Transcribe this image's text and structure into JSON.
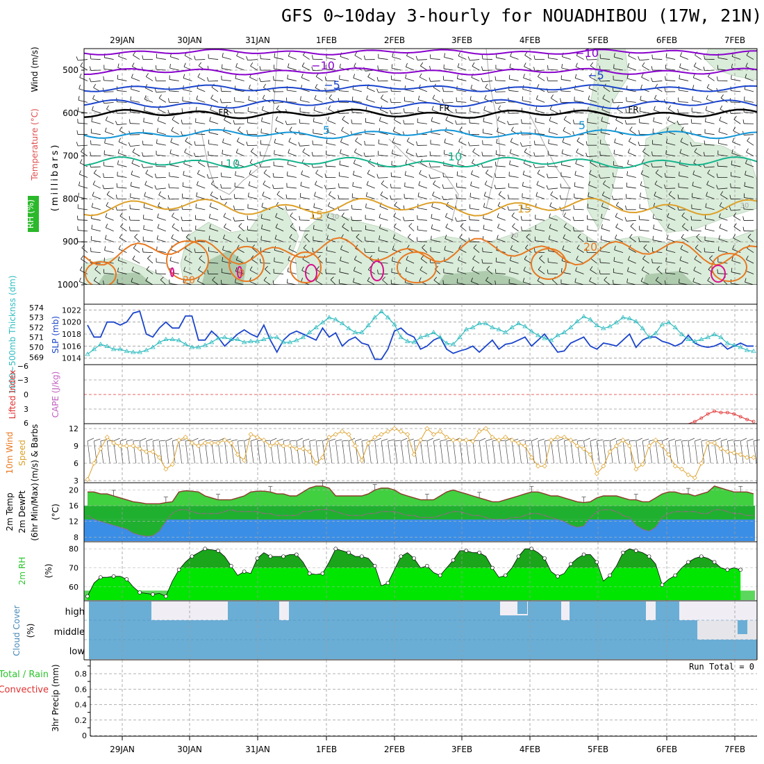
{
  "title": "GFS 0~10day 3-hourly for NOUADHIBOU (17W, 21N)",
  "date_labels": [
    "29JAN",
    "30JAN",
    "31JAN",
    "1FEB",
    "2FEB",
    "3FEB",
    "4FEB",
    "5FEB",
    "6FEB",
    "7FEB"
  ],
  "colors": {
    "purple": "#8800cc",
    "blue": "#1a44cc",
    "black": "#000000",
    "lightblue": "#1196d8",
    "teal": "#14b48c",
    "gold": "#dca028",
    "orange": "#e87820",
    "magenta": "#d8108c",
    "lcyan": "#30bcc0",
    "rhgreen": "#2bc42b",
    "brightgreen": "#00e600",
    "darkgreen": "#1aa51a",
    "cloud": "#6aaed6",
    "red": "#e03030"
  },
  "chart_data": [
    {
      "panel": "upper-air",
      "type": "line",
      "ylabel_parts": {
        "wind": "Wind (m/s)",
        "temp": "Temperature (°C)",
        "rh": "RH (%)",
        "unit": "(millibars)"
      },
      "yticks": [
        "500",
        "600",
        "700",
        "800",
        "900",
        "1000"
      ],
      "contour_labels": [
        "−10",
        "−10",
        "−5",
        "−5",
        "5",
        "5",
        "5",
        "10",
        "10",
        "10",
        "15",
        "15",
        "20",
        "20",
        "FR",
        "FR",
        "FR",
        "30",
        "30",
        "30",
        "0"
      ]
    },
    {
      "panel": "thickness-slp",
      "type": "line",
      "ylabel_left": "1000~500mb Thicknss (dm)",
      "ylabel_right": "SLP (mb)",
      "left_ticks": [
        "574",
        "573",
        "572",
        "571",
        "570",
        "569"
      ],
      "right_ticks": [
        "1022",
        "1020",
        "1018",
        "1016",
        "1014"
      ],
      "series": [
        {
          "name": "SLP (mb)",
          "values": [
            1019.5,
            1017.5,
            1017.5,
            1020,
            1020,
            1019.5,
            1020,
            1021.5,
            1021.8,
            1018,
            1017.5,
            1019,
            1020,
            1019,
            1019,
            1021,
            1021,
            1017,
            1017,
            1018.5,
            1017.5,
            1016,
            1017,
            1018,
            1018.7,
            1018,
            1017.5,
            1019.5,
            1017,
            1015,
            1017,
            1018,
            1018.5,
            1018,
            1017.5,
            1017,
            1019,
            1017.5,
            1018.2,
            1016,
            1017,
            1017.5,
            1016.5,
            1016.2,
            1013.8,
            1013.8,
            1015.5,
            1018.5,
            1019,
            1018,
            1017.5,
            1015.5,
            1016,
            1017,
            1017.5,
            1015.5,
            1014.8,
            1015.2,
            1015.5,
            1016,
            1015,
            1016,
            1017,
            1015.5,
            1016.3,
            1016.5,
            1017,
            1017.5,
            1016,
            1017,
            1018,
            1016.5,
            1015,
            1015.2,
            1016.5,
            1017,
            1017.5,
            1016,
            1015.5,
            1016.5,
            1016.3,
            1016,
            1017,
            1018,
            1015.8,
            1017,
            1017.5,
            1017.5,
            1016.8,
            1016.5,
            1016,
            1016.5,
            1017.8,
            1016.5,
            1016,
            1015.8,
            1016,
            1016.5,
            1015.5,
            1016,
            1016.5,
            1016,
            1016
          ]
        },
        {
          "name": "1000~500mb Thicknss (dm)",
          "values": [
            569.3,
            569.8,
            570.3,
            570.1,
            569.8,
            569.8,
            569.6,
            569.5,
            569.5,
            569.7,
            570.0,
            570.5,
            570.8,
            570.8,
            570.7,
            570.3,
            570.0,
            570.0,
            570.2,
            570.5,
            570.9,
            571.0,
            570.8,
            570.8,
            570.5,
            570.6,
            570.6,
            570.8,
            571.0,
            571.0,
            570.5,
            570.5,
            570.7,
            571.0,
            571.5,
            572.0,
            572.5,
            573.0,
            572.8,
            572.4,
            571.9,
            571.5,
            571.5,
            572.2,
            573.0,
            573.6,
            573.0,
            572.3,
            571.0,
            570.6,
            570.5,
            571.0,
            571.2,
            571.5,
            571.0,
            570.4,
            570.3,
            571.0,
            571.8,
            572.0,
            572.4,
            572.4,
            572.0,
            571.8,
            571.5,
            572.0,
            572.4,
            572.1,
            571.6,
            571.2,
            570.9,
            570.7,
            571.2,
            571.5,
            572.0,
            572.6,
            573.1,
            572.8,
            572.2,
            571.9,
            572.1,
            572.5,
            573.0,
            572.9,
            572.6,
            571.9,
            571.0,
            571.4,
            572.3,
            572.5,
            572.0,
            571.3,
            570.8,
            570.6,
            570.8,
            571.0,
            571.3,
            571.0,
            570.4,
            570.2,
            570.0,
            569.7,
            569.6
          ]
        }
      ]
    },
    {
      "panel": "lifted-index-cape",
      "type": "line",
      "ylabel_left": "Lifted Index",
      "ylabel_right": "CAPE (J/kg)",
      "yticks": [
        "−6",
        "−3",
        "0",
        "3",
        "6"
      ],
      "series": [
        {
          "name": "CAPE (J/kg)",
          "values": [
            0,
            0,
            0,
            0,
            0,
            0,
            0,
            0,
            0,
            0,
            0,
            0,
            0,
            0,
            0,
            0,
            0,
            0,
            0,
            0,
            0,
            0,
            0,
            0,
            0,
            0,
            0,
            0,
            0,
            0,
            0,
            0,
            0,
            0,
            0,
            0,
            0,
            0,
            0,
            0,
            0,
            0,
            0,
            0,
            0,
            0,
            0,
            0,
            0,
            0,
            0,
            0,
            0,
            0,
            0,
            0,
            0,
            0,
            0,
            0,
            0,
            0,
            0,
            0,
            0,
            0,
            0,
            0,
            0,
            0,
            0,
            0,
            0,
            0,
            0,
            0,
            0,
            0,
            0,
            0,
            0,
            0,
            0,
            0,
            0,
            0,
            0,
            0,
            0,
            0,
            0,
            0,
            0,
            0.3,
            0.8,
            1.4,
            1.8,
            1.6,
            1.6,
            1.4,
            1.0,
            0.6,
            0.3
          ]
        }
      ]
    },
    {
      "panel": "10m-wind",
      "type": "line",
      "ylabel": "10m Wind Speed (m/s) & Barbs",
      "ylabel_parts": {
        "a": "10m Wind",
        "b": "Speed",
        "c": "(m/s) & Barbs"
      },
      "yticks": [
        "12",
        "9",
        "6",
        "3"
      ],
      "ylim": [
        3,
        12.6
      ],
      "series": [
        {
          "name": "Speed",
          "values": [
            3.2,
            6,
            8.5,
            10.5,
            9.5,
            9,
            9,
            9,
            8.5,
            8,
            8,
            7,
            5,
            5.8,
            10,
            10.5,
            9.5,
            9,
            9.5,
            9.5,
            9.5,
            10,
            9.5,
            7.5,
            6.5,
            11,
            10.5,
            10,
            9,
            9.5,
            9,
            9,
            8.5,
            8.5,
            8,
            6,
            7,
            10.5,
            11,
            11.5,
            11,
            9,
            6.5,
            9.5,
            10.5,
            11,
            11.5,
            12,
            11.5,
            11,
            7.5,
            10,
            12,
            11,
            11.5,
            10.5,
            10,
            10,
            10,
            9.8,
            11.5,
            12,
            10.5,
            10,
            10.5,
            10,
            9.5,
            9,
            7,
            5.5,
            5.5,
            10,
            10.5,
            10.5,
            10,
            9,
            8.5,
            7.5,
            4.2,
            5.5,
            8,
            9,
            10,
            9,
            5,
            5.8,
            9,
            10,
            9,
            7.5,
            5.5,
            5,
            4,
            3.5,
            6,
            9.5,
            9.5,
            8.5,
            8,
            7.8,
            7.5,
            7,
            7
          ]
        }
      ]
    },
    {
      "panel": "2m-temp",
      "type": "area",
      "ylabel": "2m Temp 2m DewPt (6hr Min/Max) (°C)",
      "ylabel_parts": {
        "a": "2m Temp",
        "b": "2m DewPt",
        "c": "(6hr Min/Max)",
        "d": "(°C)"
      },
      "yticks": [
        "20",
        "16",
        "12",
        "8"
      ],
      "ylim": [
        7,
        21.5
      ],
      "series": [
        {
          "name": "2m Temp",
          "values": [
            19.5,
            19.5,
            19,
            19,
            18.5,
            18,
            17.5,
            17,
            16.8,
            16.5,
            16.5,
            16.5,
            16.8,
            17,
            19.5,
            19.8,
            19.7,
            19.5,
            18.5,
            18,
            17.5,
            17.5,
            17.5,
            18,
            18.5,
            19.5,
            19.7,
            19.7,
            19.5,
            19,
            19,
            18.5,
            18.5,
            19.5,
            20.5,
            21,
            21,
            20.5,
            18.5,
            18.5,
            18.5,
            18.5,
            18.5,
            19,
            20,
            20.5,
            20.5,
            20,
            19,
            18.5,
            18,
            17.5,
            17.5,
            17.5,
            18.5,
            19.5,
            20,
            19.5,
            19,
            18.5,
            18,
            17.5,
            17,
            17,
            17.5,
            18,
            18.5,
            19,
            19.5,
            19.5,
            19,
            18.5,
            18.5,
            18,
            17.5,
            17,
            16.8,
            17,
            18,
            18.5,
            18.5,
            18.5,
            18,
            17.5,
            17.5,
            17,
            17,
            18,
            19,
            19.5,
            19.5,
            19,
            19,
            18.5,
            19,
            19.5,
            21,
            20.5,
            20,
            19.5,
            19.5,
            19.5,
            19
          ]
        },
        {
          "name": "2m DewPt",
          "values": [
            13.5,
            12.5,
            12,
            11.5,
            11,
            10.5,
            10,
            9,
            8.5,
            8.2,
            8.3,
            9.5,
            12,
            14,
            15,
            15,
            14.5,
            14,
            14,
            14,
            14,
            14.5,
            15,
            14.5,
            14.5,
            14.5,
            14.5,
            14,
            14,
            13.5,
            13.5,
            13.5,
            13.5,
            14.5,
            14.5,
            15,
            15,
            15,
            14.5,
            14,
            13.5,
            13.5,
            13.5,
            14,
            14,
            14.5,
            14.5,
            14.5,
            14,
            13.5,
            13.5,
            13,
            13,
            13,
            13.5,
            14,
            14.5,
            14.5,
            14,
            13.5,
            13.5,
            13,
            12.5,
            12.5,
            12.5,
            13,
            13,
            13.5,
            14,
            14,
            13.5,
            13,
            12.5,
            12,
            11,
            10.5,
            10.8,
            13,
            14.5,
            15,
            15,
            14.5,
            13.5,
            13,
            11,
            10,
            9.5,
            10.5,
            13,
            14,
            14.5,
            14.5,
            14.5,
            14.5,
            14,
            14,
            15,
            15,
            14.5,
            14,
            14,
            13.5,
            13.5
          ]
        }
      ]
    },
    {
      "panel": "2m-rh",
      "type": "area",
      "ylabel": "2m RH (%)",
      "yticks": [
        "80",
        "70",
        "60"
      ],
      "ylim": [
        53,
        83
      ],
      "series": [
        {
          "name": "2m RH",
          "values": [
            55,
            62,
            65,
            65,
            65.5,
            65.5,
            64,
            60,
            57,
            56.5,
            56,
            56.5,
            55,
            63,
            69,
            73,
            76,
            78,
            80,
            79.5,
            79,
            76,
            71,
            66,
            68,
            67,
            75,
            78,
            76,
            76,
            76,
            77,
            77,
            73,
            67,
            66.5,
            67,
            73,
            80,
            79,
            78,
            76,
            76,
            75,
            71,
            60.5,
            62,
            69,
            76,
            78,
            75,
            70,
            71,
            67.5,
            66,
            70,
            74,
            79,
            79,
            78,
            78,
            76,
            70,
            65,
            66,
            70,
            76,
            80,
            80,
            78,
            75,
            68,
            65.5,
            67,
            72,
            75,
            77,
            77,
            73,
            63,
            66,
            71,
            78,
            80,
            79,
            78,
            76,
            72,
            61,
            64,
            66,
            70,
            73,
            75,
            76,
            75,
            73,
            70,
            69,
            70,
            69
          ]
        }
      ]
    },
    {
      "panel": "cloud-cover",
      "type": "heatmap",
      "ylabel": "Cloud Cover (%)",
      "rows": [
        "high",
        "middle",
        "low"
      ]
    },
    {
      "panel": "precip",
      "type": "bar",
      "ylabel": "3hr Precip (mm)",
      "ylabel_left": "Total / Rain",
      "ylabel_left2": "Convective",
      "yticks": [
        "0.8",
        "0.6",
        "0.4",
        "0.2",
        "0"
      ],
      "run_total": "Run Total = 0",
      "values": []
    }
  ]
}
